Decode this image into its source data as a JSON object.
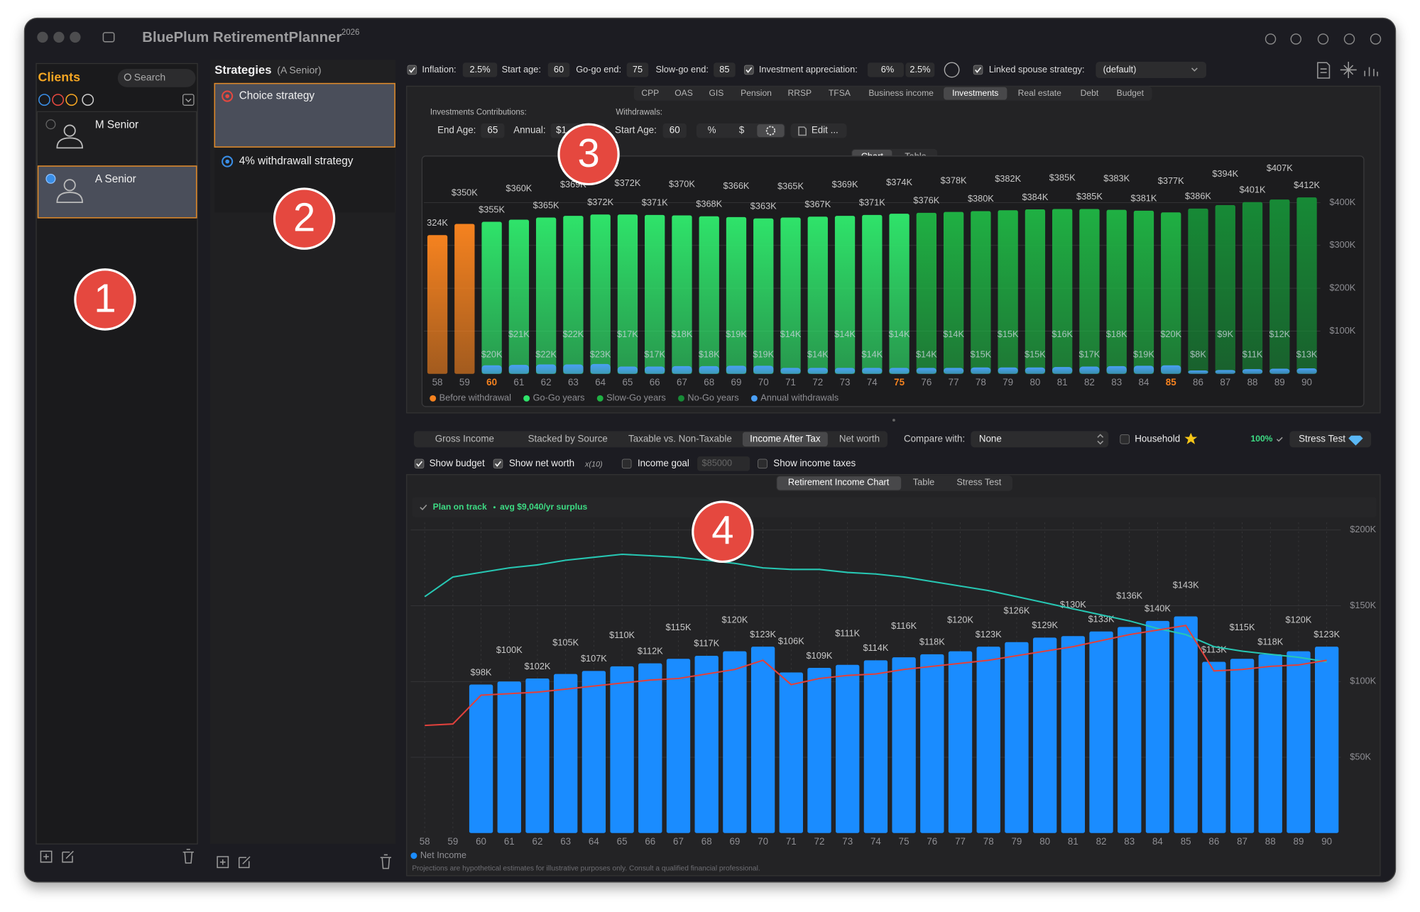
{
  "window": {
    "title": "BluePlum RetirementPlanner",
    "edition": "2026"
  },
  "clients": {
    "title": "Clients",
    "search": "Search",
    "items": [
      {
        "name": "M Senior",
        "selected": false
      },
      {
        "name": "A Senior",
        "selected": true
      }
    ]
  },
  "strategies": {
    "title": "Strategies",
    "owner": "(A Senior)",
    "items": [
      {
        "name": "Choice strategy",
        "selected": true,
        "color": "#e5483f"
      },
      {
        "name": "4% withdrawall strategy",
        "selected": false,
        "color": "#3a8ee6"
      }
    ]
  },
  "callouts": [
    "1",
    "2",
    "3",
    "4"
  ],
  "settings": {
    "inflation": {
      "label": "Inflation:",
      "value": "2.5%",
      "checked": true
    },
    "start_age": {
      "label": "Start age:",
      "value": 60
    },
    "go_go_end": {
      "label": "Go-go end:",
      "value": 75
    },
    "slow_go_end": {
      "label": "Slow-go end:",
      "value": 85
    },
    "appreciation": {
      "label": "Investment appreciation:",
      "values": [
        "6%",
        "2.5%"
      ],
      "checked": true
    },
    "linked_spouse": {
      "label": "Linked spouse strategy:",
      "value": "(default)",
      "checked": true
    }
  },
  "tabs": [
    {
      "label": "CPP"
    },
    {
      "label": "OAS"
    },
    {
      "label": "GIS"
    },
    {
      "label": "Pension"
    },
    {
      "label": "RRSP"
    },
    {
      "label": "TFSA"
    },
    {
      "label": "Business income"
    },
    {
      "label": "Investments",
      "selected": true
    },
    {
      "label": "Real estate"
    },
    {
      "label": "Debt"
    },
    {
      "label": "Budget"
    }
  ],
  "contributions": {
    "title": "Investments Contributions:",
    "end_age_label": "End Age:",
    "end_age": "65",
    "annual_label": "Annual:",
    "annual": "$1"
  },
  "withdrawals": {
    "title": "Withdrawals:",
    "start_age_label": "Start Age:",
    "start_age": "60",
    "modes": [
      "%",
      "$"
    ],
    "edit": "Edit ..."
  },
  "view_toggle": [
    {
      "label": "Chart",
      "selected": true
    },
    {
      "label": "Table"
    }
  ],
  "income_controls": {
    "modes": [
      {
        "label": "Gross Income"
      },
      {
        "label": "Stacked by Source"
      },
      {
        "label": "Taxable vs. Non-Taxable"
      },
      {
        "label": "Income After Tax",
        "selected": true
      },
      {
        "label": "Net worth"
      }
    ],
    "compare": {
      "label": "Compare with:",
      "value": "None"
    },
    "household": {
      "label": "Household",
      "checked": false
    },
    "coverage": "100%",
    "stress_test": "Stress Test",
    "show_budget": {
      "label": "Show budget",
      "checked": true
    },
    "show_net_worth": {
      "label": "Show net worth",
      "checked": true,
      "scale": "x(10)"
    },
    "income_goal": {
      "label": "Income goal",
      "checked": false,
      "value": "$85000"
    },
    "show_income_taxes": {
      "label": "Show income taxes",
      "checked": false
    }
  },
  "income_tabs": [
    {
      "label": "Retirement Income Chart",
      "selected": true
    },
    {
      "label": "Table"
    },
    {
      "label": "Stress Test"
    }
  ],
  "chart_data": [
    {
      "type": "bar",
      "categories": [
        58,
        59,
        60,
        61,
        62,
        63,
        64,
        65,
        66,
        67,
        68,
        69,
        70,
        71,
        72,
        73,
        74,
        75,
        76,
        77,
        78,
        79,
        80,
        81,
        82,
        83,
        84,
        85,
        86,
        87,
        88,
        89,
        90
      ],
      "series": [
        {
          "name": "Before withdrawal",
          "color": "#f5821f",
          "values": [
            324000,
            350000,
            null,
            null,
            null,
            null,
            null,
            null,
            null,
            null,
            null,
            null,
            null,
            null,
            null,
            null,
            null,
            null,
            null,
            null,
            null,
            null,
            null,
            null,
            null,
            null,
            null,
            null,
            null,
            null,
            null,
            null,
            null
          ],
          "value_labels": [
            "324K",
            "$350K",
            null,
            null,
            null,
            null,
            null,
            null,
            null,
            null,
            null,
            null,
            null,
            null,
            null,
            null,
            null,
            null,
            null,
            null,
            null,
            null,
            null,
            null,
            null,
            null,
            null,
            null,
            null,
            null,
            null,
            null,
            null
          ]
        },
        {
          "name": "Go-Go years",
          "color": "#2fe36a",
          "values": [
            null,
            null,
            355000,
            360000,
            365000,
            369000,
            372000,
            372000,
            371000,
            370000,
            368000,
            366000,
            363000,
            365000,
            367000,
            369000,
            371000,
            374000,
            null,
            null,
            null,
            null,
            null,
            null,
            null,
            null,
            null,
            null,
            null,
            null,
            null,
            null,
            null
          ],
          "value_labels": [
            null,
            null,
            "$355K",
            "$360K",
            "$365K",
            "$369K",
            "$372K",
            "$372K",
            "$371K",
            "$370K",
            "$368K",
            "$366K",
            "$363K",
            "$365K",
            "$367K",
            "$369K",
            "$371K",
            "$374K",
            null,
            null,
            null,
            null,
            null,
            null,
            null,
            null,
            null,
            null,
            null,
            null,
            null,
            null,
            null
          ]
        },
        {
          "name": "Slow-Go years",
          "color": "#1fb043",
          "values": [
            null,
            null,
            null,
            null,
            null,
            null,
            null,
            null,
            null,
            null,
            null,
            null,
            null,
            null,
            null,
            null,
            null,
            null,
            376000,
            378000,
            380000,
            382000,
            384000,
            385000,
            385000,
            383000,
            381000,
            377000,
            null,
            null,
            null,
            null,
            null
          ],
          "value_labels": [
            null,
            null,
            null,
            null,
            null,
            null,
            null,
            null,
            null,
            null,
            null,
            null,
            null,
            null,
            null,
            null,
            null,
            null,
            "$376K",
            "$378K",
            "$380K",
            "$382K",
            "$384K",
            "$385K",
            "$385K",
            "$383K",
            "$381K",
            "$377K",
            null,
            null,
            null,
            null,
            null
          ]
        },
        {
          "name": "No-Go years",
          "color": "#178a36",
          "values": [
            null,
            null,
            null,
            null,
            null,
            null,
            null,
            null,
            null,
            null,
            null,
            null,
            null,
            null,
            null,
            null,
            null,
            null,
            null,
            null,
            null,
            null,
            null,
            null,
            null,
            null,
            null,
            null,
            386000,
            394000,
            401000,
            407000,
            412000
          ],
          "value_labels": [
            null,
            null,
            null,
            null,
            null,
            null,
            null,
            null,
            null,
            null,
            null,
            null,
            null,
            null,
            null,
            null,
            null,
            null,
            null,
            null,
            null,
            null,
            null,
            null,
            null,
            null,
            null,
            null,
            "$386K",
            "$394K",
            "$401K",
            "$407K",
            "$412K"
          ]
        },
        {
          "name": "Annual withdrawals",
          "color": "#4a9ff5",
          "values": [
            null,
            null,
            20000,
            21000,
            22000,
            22000,
            23000,
            17000,
            17000,
            18000,
            18000,
            19000,
            19000,
            14000,
            14000,
            14000,
            14000,
            14000,
            14000,
            14000,
            15000,
            15000,
            15000,
            16000,
            17000,
            18000,
            19000,
            20000,
            8000,
            9000,
            11000,
            12000,
            13000
          ],
          "value_labels": [
            null,
            null,
            "$20K",
            "$21K",
            "$22K",
            "$22K",
            "$23K",
            "$17K",
            "$17K",
            "$18K",
            "$18K",
            "$19K",
            "$19K",
            "$14K",
            "$14K",
            "$14K",
            "$14K",
            "$14K",
            "$14K",
            "$14K",
            "$15K",
            "$15K",
            "$15K",
            "$16K",
            "$17K",
            "$18K",
            "$19K",
            "$20K",
            "$8K",
            "$9K",
            "$11K",
            "$12K",
            "$13K"
          ]
        }
      ],
      "ylim": [
        0,
        500000
      ],
      "yticks": [
        {
          "value": 100000,
          "label": "$100K"
        },
        {
          "value": 200000,
          "label": "$200K"
        },
        {
          "value": 300000,
          "label": "$300K"
        },
        {
          "value": 400000,
          "label": "$400K"
        }
      ],
      "grid": true,
      "gradient": true,
      "highlight_color": "#f5821f",
      "legend": "bottom-left"
    },
    {
      "type": "bar",
      "status": "Plan on track",
      "summary": "avg $9,040/yr surplus",
      "categories": [
        58,
        59,
        60,
        61,
        62,
        63,
        64,
        65,
        66,
        67,
        68,
        69,
        70,
        71,
        72,
        73,
        74,
        75,
        76,
        77,
        78,
        79,
        80,
        81,
        82,
        83,
        84,
        85,
        86,
        87,
        88,
        89,
        90
      ],
      "series": [
        {
          "name": "Net Income",
          "color": "#1a8cff",
          "values": [
            null,
            null,
            98000,
            100000,
            102000,
            105000,
            107000,
            110000,
            112000,
            115000,
            117000,
            120000,
            123000,
            106000,
            109000,
            111000,
            114000,
            116000,
            118000,
            120000,
            123000,
            126000,
            129000,
            130000,
            133000,
            136000,
            140000,
            143000,
            113000,
            115000,
            118000,
            120000,
            123000
          ],
          "value_labels": [
            null,
            null,
            "$98K",
            "$100K",
            "$102K",
            "$105K",
            "$107K",
            "$110K",
            "$112K",
            "$115K",
            "$117K",
            "$120K",
            "$123K",
            "$106K",
            "$109K",
            "$111K",
            "$114K",
            "$116K",
            "$118K",
            "$120K",
            "$123K",
            "$126K",
            "$129K",
            "$130K",
            "$133K",
            "$136K",
            "$140K",
            "$143K",
            "$113K",
            "$115K",
            "$118K",
            "$120K",
            "$123K"
          ]
        },
        {
          "type": "line",
          "color": "#27c7b3",
          "values": [
            156000,
            169000,
            172000,
            175000,
            177000,
            180000,
            182000,
            184000,
            183000,
            182000,
            180000,
            178000,
            175000,
            174000,
            174000,
            172000,
            171000,
            169000,
            166000,
            163000,
            160000,
            156000,
            152000,
            148000,
            144000,
            140000,
            135000,
            131000,
            123000,
            120000,
            118000,
            116000,
            113000
          ]
        },
        {
          "type": "line",
          "color": "#e0413c",
          "values": [
            71000,
            72000,
            91000,
            92000,
            93000,
            95000,
            97000,
            99000,
            101000,
            102000,
            105000,
            108000,
            114000,
            98000,
            102000,
            104000,
            105000,
            108000,
            110000,
            112000,
            114000,
            117000,
            120000,
            123000,
            127000,
            131000,
            134000,
            137000,
            107000,
            108000,
            110000,
            111000,
            114000
          ]
        }
      ],
      "ylim": [
        0,
        205000
      ],
      "yticks": [
        {
          "value": 50000,
          "label": "$50K"
        },
        {
          "value": 100000,
          "label": "$100K"
        },
        {
          "value": 150000,
          "label": "$150K"
        },
        {
          "value": 200000,
          "label": "$200K"
        }
      ],
      "grid": true,
      "xgrid": true,
      "legend": "bottom-left"
    }
  ],
  "footnote": "Projections are hypothetical estimates for illustrative purposes only. Consult a qualified financial professional."
}
